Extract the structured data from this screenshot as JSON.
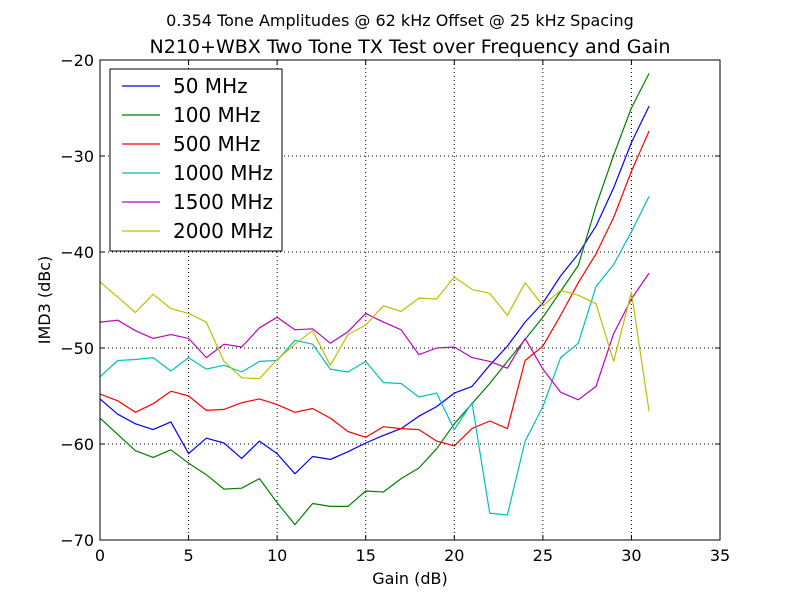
{
  "chart_data": {
    "type": "line",
    "suptitle": "0.354 Tone Amplitudes @ 62 kHz Offset @ 25 kHz Spacing",
    "title": "N210+WBX Two Tone TX Test over Frequency and Gain",
    "xlabel": "Gain (dB)",
    "ylabel": "IMD3 (dBc)",
    "xlim": [
      0,
      35
    ],
    "ylim": [
      -70,
      -20
    ],
    "xticks": [
      0,
      5,
      10,
      15,
      20,
      25,
      30,
      35
    ],
    "yticks": [
      -70,
      -60,
      -50,
      -40,
      -30,
      -20
    ],
    "xtick_labels": [
      "0",
      "5",
      "10",
      "15",
      "20",
      "25",
      "30",
      "35"
    ],
    "ytick_labels": [
      "−70",
      "−60",
      "−50",
      "−40",
      "−30",
      "−20"
    ],
    "grid": true,
    "legend_position": "upper-left",
    "x": [
      0,
      1,
      2,
      3,
      4,
      5,
      6,
      7,
      8,
      9,
      10,
      11,
      12,
      13,
      14,
      15,
      16,
      17,
      18,
      19,
      20,
      21,
      22,
      23,
      24,
      25,
      26,
      27,
      28,
      29,
      30,
      31
    ],
    "series": [
      {
        "name": "50 MHz",
        "color": "#0000ff",
        "values": [
          -55.3,
          -56.9,
          -57.9,
          -58.5,
          -57.7,
          -61.0,
          -59.4,
          -59.9,
          -61.5,
          -59.7,
          -61.0,
          -63.1,
          -61.3,
          -61.6,
          -60.8,
          -59.9,
          -59.1,
          -58.4,
          -57.1,
          -56.1,
          -54.7,
          -54.0,
          -51.8,
          -49.8,
          -47.3,
          -45.3,
          -42.5,
          -40.2,
          -37.3,
          -33.3,
          -28.6,
          -24.8
        ]
      },
      {
        "name": "100 MHz",
        "color": "#008000",
        "values": [
          -57.3,
          -59.0,
          -60.7,
          -61.4,
          -60.6,
          -62.0,
          -63.2,
          -64.7,
          -64.6,
          -63.6,
          -66.1,
          -68.4,
          -66.2,
          -66.5,
          -66.5,
          -64.9,
          -65.0,
          -63.6,
          -62.5,
          -60.5,
          -57.9,
          -55.8,
          -53.7,
          -51.4,
          -49.1,
          -46.8,
          -44.1,
          -41.4,
          -35.2,
          -29.9,
          -25.0,
          -21.4
        ]
      },
      {
        "name": "500 MHz",
        "color": "#ff0000",
        "values": [
          -54.8,
          -55.5,
          -56.7,
          -55.8,
          -54.5,
          -55.0,
          -56.5,
          -56.4,
          -55.7,
          -55.3,
          -55.9,
          -56.7,
          -56.3,
          -57.3,
          -58.7,
          -59.3,
          -58.2,
          -58.4,
          -58.5,
          -59.7,
          -60.2,
          -58.4,
          -57.6,
          -58.4,
          -51.3,
          -49.8,
          -46.6,
          -43.2,
          -40.2,
          -36.4,
          -31.6,
          -27.4
        ]
      },
      {
        "name": "1000 MHz",
        "color": "#00bfbf",
        "values": [
          -53.0,
          -51.3,
          -51.2,
          -51.0,
          -52.4,
          -51.0,
          -52.2,
          -51.8,
          -52.5,
          -51.4,
          -51.3,
          -49.2,
          -49.6,
          -52.2,
          -52.5,
          -51.4,
          -53.6,
          -53.7,
          -55.1,
          -54.7,
          -58.5,
          -55.7,
          -67.2,
          -67.4,
          -59.7,
          -56.1,
          -51.0,
          -49.5,
          -43.6,
          -41.3,
          -37.9,
          -34.2
        ]
      },
      {
        "name": "1500 MHz",
        "color": "#bf00bf",
        "values": [
          -47.3,
          -47.1,
          -48.2,
          -49.0,
          -48.6,
          -49.0,
          -51.0,
          -49.6,
          -49.9,
          -47.9,
          -46.8,
          -48.1,
          -48.0,
          -49.5,
          -48.3,
          -46.4,
          -47.3,
          -48.1,
          -50.7,
          -50.0,
          -49.9,
          -51.0,
          -51.4,
          -52.1,
          -49.0,
          -52.2,
          -54.6,
          -55.4,
          -54.0,
          -48.5,
          -44.9,
          -42.2
        ]
      },
      {
        "name": "2000 MHz",
        "color": "#bfbf00",
        "values": [
          -43.1,
          -44.7,
          -46.3,
          -44.4,
          -45.9,
          -46.4,
          -47.3,
          -51.4,
          -53.1,
          -53.2,
          -51.2,
          -49.6,
          -48.2,
          -51.8,
          -48.6,
          -47.6,
          -45.6,
          -46.2,
          -44.8,
          -44.9,
          -42.6,
          -43.9,
          -44.3,
          -46.6,
          -43.2,
          -45.6,
          -44.0,
          -44.5,
          -45.4,
          -51.4,
          -44.2,
          -56.6
        ]
      }
    ]
  }
}
